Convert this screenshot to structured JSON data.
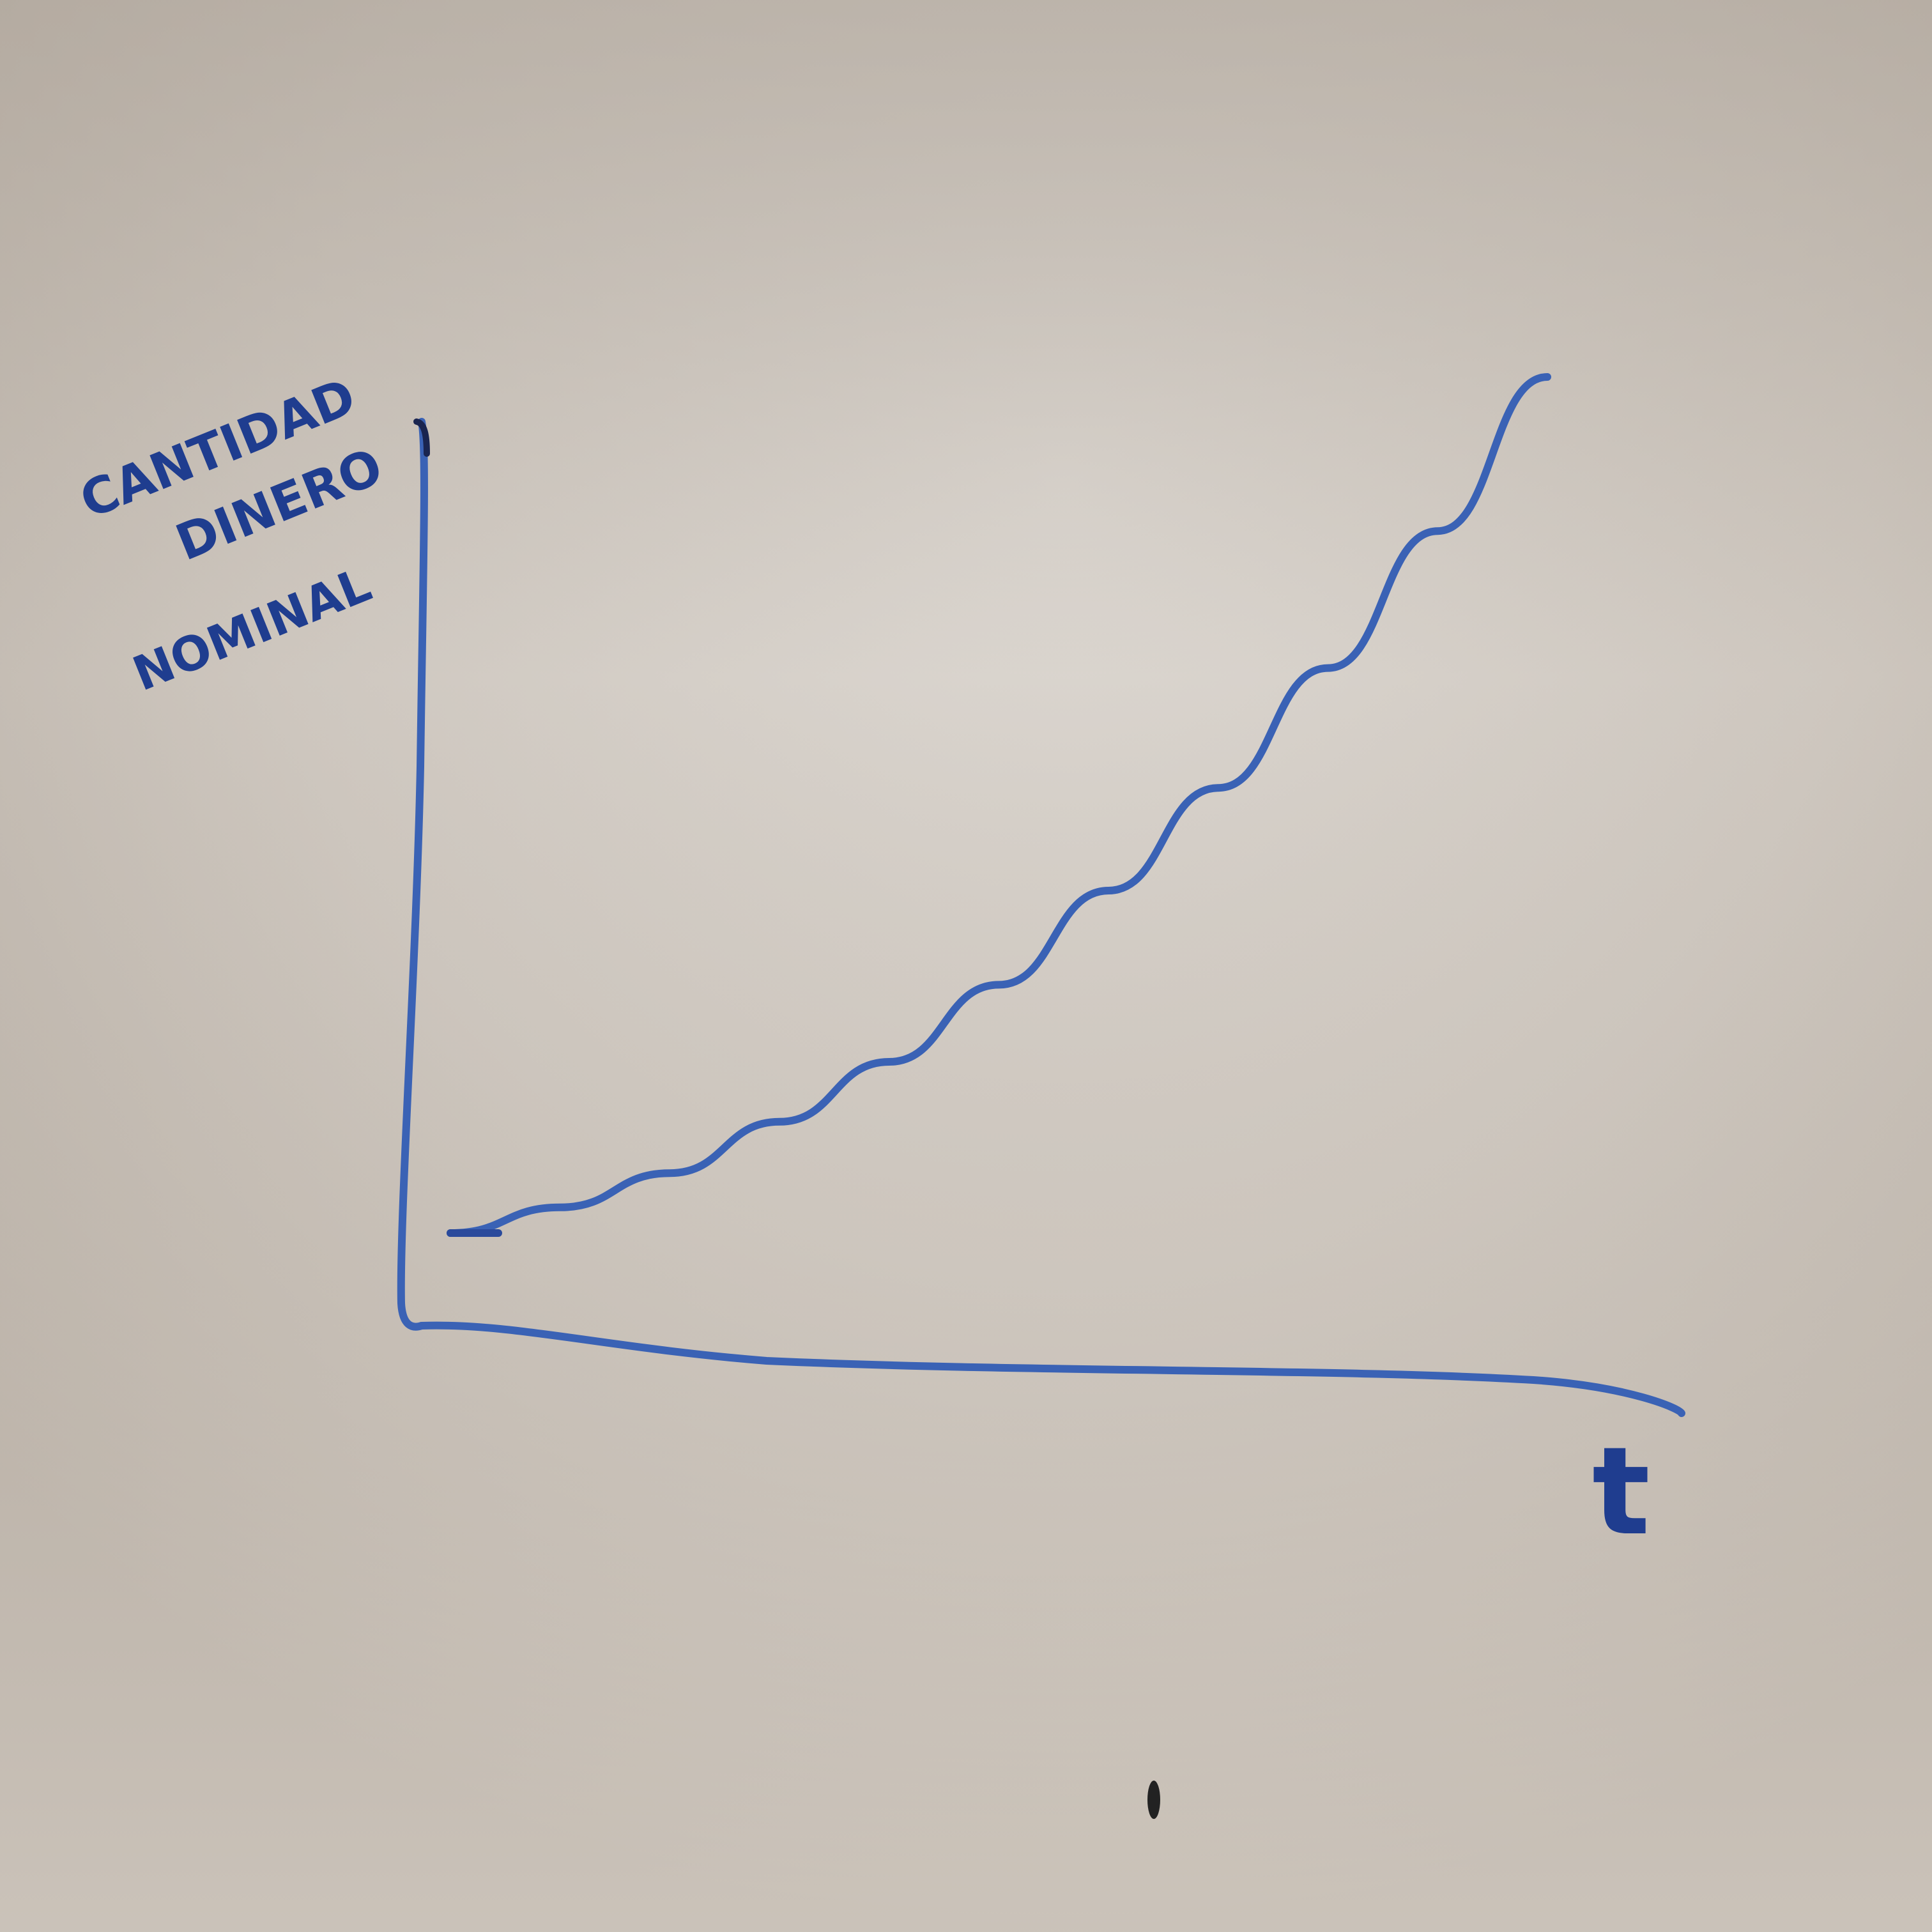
{
  "colors": {
    "marker_blue": "#3a62b5",
    "ink_dark_blue": "#1f3d8f",
    "board_light": "#e6e0d8",
    "board_shadow": "#b3aaa0"
  },
  "chart_data": {
    "type": "line",
    "title": "",
    "ylabel_lines": [
      "CANTIDAD",
      "DINERO",
      "NOMINAL"
    ],
    "xlabel": "t",
    "axes": {
      "x_ticks": false,
      "y_ticks": false,
      "grid": false
    },
    "series": [
      {
        "shape": "exponential growth",
        "x": [
          0,
          0.1,
          0.2,
          0.3,
          0.4,
          0.5,
          0.6,
          0.7,
          0.8,
          0.9,
          1.0
        ],
        "y": [
          0.0,
          0.03,
          0.07,
          0.13,
          0.2,
          0.29,
          0.4,
          0.52,
          0.66,
          0.82,
          1.0
        ]
      }
    ]
  }
}
